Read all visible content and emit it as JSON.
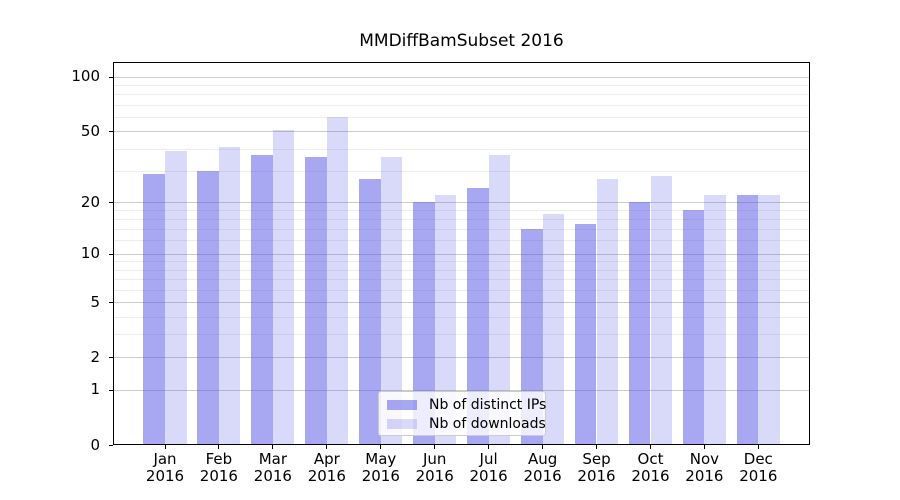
{
  "chart_data": {
    "type": "bar",
    "title": "MMDiffBamSubset 2016",
    "categories": [
      "Jan",
      "Feb",
      "Mar",
      "Apr",
      "May",
      "Jun",
      "Jul",
      "Aug",
      "Sep",
      "Oct",
      "Nov",
      "Dec"
    ],
    "x_year_label": "2016",
    "series": [
      {
        "name": "Nb of distinct IPs",
        "color": "rgba(80,80,230,0.5)",
        "color_hex_on_white": "#a8a8f0",
        "values": [
          29,
          30,
          37,
          36,
          27,
          20,
          24,
          14,
          15,
          20,
          18,
          22
        ]
      },
      {
        "name": "Nb of downloads",
        "color": "rgba(80,80,230,0.22)",
        "color_hex_on_white": "#d9d9f8",
        "values": [
          39,
          41,
          51,
          60,
          36,
          22,
          37,
          17,
          27,
          28,
          22,
          22
        ]
      }
    ],
    "xlabel": "",
    "ylabel": "",
    "yscale": "log1p",
    "yticks": [
      0,
      1,
      2,
      5,
      10,
      20,
      50,
      100
    ],
    "yticks_minor": [
      3,
      4,
      6,
      7,
      8,
      9,
      12,
      14,
      16,
      18,
      30,
      40,
      60,
      70,
      80,
      90
    ],
    "ylim": [
      0,
      120
    ],
    "grid": true,
    "legend_position": "lower center"
  },
  "colors": {
    "background": "#ffffff",
    "axis": "#000000",
    "grid_major": "#cccccc",
    "grid_minor": "#ededed",
    "legend_border": "#cccccc",
    "bar_base": "#5050e6"
  }
}
